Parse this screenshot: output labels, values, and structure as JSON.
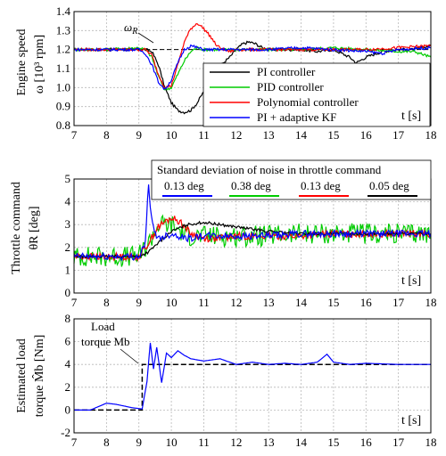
{
  "chart_data": [
    {
      "type": "line",
      "ylabel_line1": "Engine speed",
      "ylabel_line2": "ω [10³ rpm]",
      "xlabel": "t [s]",
      "xlim": [
        7,
        18
      ],
      "ylim": [
        0.8,
        1.4
      ],
      "xticks": [
        "7",
        "8",
        "9",
        "10",
        "11",
        "12",
        "13",
        "14",
        "15",
        "16",
        "17",
        "18"
      ],
      "yticks": [
        "0.8",
        "0.9",
        "1.0",
        "1.1",
        "1.2",
        "1.3",
        "1.4"
      ],
      "grid": true,
      "legend_position": "center-right",
      "annotations": [
        {
          "text": "ωR",
          "x": 9.3,
          "y": 1.33
        }
      ],
      "series": [
        {
          "name": "PI controller",
          "color": "#000000",
          "x": [
            7,
            8,
            9,
            9.2,
            9.4,
            9.6,
            9.8,
            10.0,
            10.2,
            10.4,
            10.6,
            10.8,
            11.0,
            11.2,
            11.4,
            11.6,
            11.8,
            12.0,
            12.2,
            12.4,
            12.6,
            12.8,
            13.0,
            13.5,
            14,
            14.5,
            15,
            15.5,
            15.7,
            16,
            16.5,
            17,
            17.5,
            18
          ],
          "y": [
            1.2,
            1.2,
            1.2,
            1.2,
            1.19,
            1.12,
            1.0,
            0.92,
            0.88,
            0.87,
            0.88,
            0.92,
            0.98,
            1.04,
            1.09,
            1.13,
            1.16,
            1.2,
            1.23,
            1.24,
            1.23,
            1.21,
            1.2,
            1.2,
            1.2,
            1.19,
            1.2,
            1.16,
            1.13,
            1.16,
            1.19,
            1.2,
            1.2,
            1.22
          ]
        },
        {
          "name": "PID controller",
          "color": "#00cc00",
          "x": [
            7,
            8,
            9,
            9.2,
            9.4,
            9.6,
            9.8,
            10.0,
            10.2,
            10.4,
            10.6,
            10.8,
            11.0,
            11.2,
            11.6,
            12,
            13,
            14,
            15,
            16,
            17,
            17.5,
            18
          ],
          "y": [
            1.2,
            1.2,
            1.21,
            1.2,
            1.16,
            1.06,
            0.99,
            1.0,
            1.07,
            1.14,
            1.19,
            1.21,
            1.2,
            1.2,
            1.2,
            1.2,
            1.2,
            1.2,
            1.21,
            1.2,
            1.19,
            1.19,
            1.16
          ]
        },
        {
          "name": "Polynomial controller",
          "color": "#ff0000",
          "x": [
            7,
            8,
            9,
            9.2,
            9.4,
            9.6,
            9.8,
            10.0,
            10.2,
            10.4,
            10.6,
            10.8,
            11.0,
            11.2,
            11.4,
            11.6,
            11.8,
            12.0,
            12.5,
            13,
            14,
            15,
            16,
            17,
            18
          ],
          "y": [
            1.2,
            1.2,
            1.2,
            1.2,
            1.17,
            1.07,
            1.0,
            1.01,
            1.12,
            1.24,
            1.31,
            1.34,
            1.31,
            1.27,
            1.22,
            1.2,
            1.19,
            1.2,
            1.2,
            1.2,
            1.2,
            1.2,
            1.2,
            1.21,
            1.22
          ]
        },
        {
          "name": "PI + adaptive KF",
          "color": "#0000ff",
          "x": [
            7,
            8,
            9,
            9.2,
            9.4,
            9.6,
            9.8,
            10.0,
            10.2,
            10.4,
            10.6,
            10.8,
            11.0,
            11.5,
            12,
            13,
            14,
            15,
            16,
            16.5,
            17,
            18
          ],
          "y": [
            1.2,
            1.2,
            1.2,
            1.18,
            1.12,
            1.03,
            0.99,
            1.04,
            1.13,
            1.2,
            1.22,
            1.21,
            1.2,
            1.2,
            1.2,
            1.2,
            1.21,
            1.2,
            1.19,
            1.18,
            1.2,
            1.21
          ]
        }
      ]
    },
    {
      "type": "line",
      "ylabel_line1": "Throttle command",
      "ylabel_line2": "θR [deg]",
      "xlabel": "t [s]",
      "xlim": [
        7,
        18
      ],
      "ylim": [
        0,
        5
      ],
      "xticks": [
        "7",
        "8",
        "9",
        "10",
        "11",
        "12",
        "13",
        "14",
        "15",
        "16",
        "17",
        "18"
      ],
      "yticks": [
        "0",
        "1",
        "2",
        "3",
        "4",
        "5"
      ],
      "grid": true,
      "legend_title": "Standard deviation of noise in throttle command",
      "legend_position": "top",
      "legend_entries": [
        {
          "label": "0.13 deg",
          "color": "#0000ff"
        },
        {
          "label": "0.38 deg",
          "color": "#00cc00"
        },
        {
          "label": "0.13 deg",
          "color": "#ff0000"
        },
        {
          "label": "0.05 deg",
          "color": "#000000"
        }
      ],
      "series": [
        {
          "color": "#00cc00",
          "noise": 0.38,
          "x": [
            7,
            8,
            9,
            9.3,
            9.6,
            10,
            10.5,
            11,
            12,
            13,
            14,
            15,
            16,
            17,
            18
          ],
          "y": [
            1.6,
            1.6,
            1.6,
            2.2,
            3.0,
            3.0,
            2.5,
            2.5,
            2.5,
            2.5,
            2.6,
            2.6,
            2.6,
            2.6,
            2.6
          ]
        },
        {
          "color": "#ff0000",
          "noise": 0.13,
          "x": [
            7,
            8,
            9,
            9.3,
            9.6,
            10,
            10.3,
            10.6,
            11,
            11.5,
            12,
            13,
            14,
            15,
            16,
            17,
            18
          ],
          "y": [
            1.6,
            1.6,
            1.6,
            2.2,
            2.9,
            3.3,
            3.1,
            2.6,
            2.4,
            2.4,
            2.5,
            2.5,
            2.5,
            2.6,
            2.6,
            2.6,
            2.6
          ]
        },
        {
          "color": "#000000",
          "noise": 0.05,
          "x": [
            7,
            8,
            9,
            9.3,
            9.6,
            10,
            10.5,
            11,
            11.5,
            12,
            12.5,
            13,
            14,
            15,
            16,
            17,
            18
          ],
          "y": [
            1.6,
            1.6,
            1.6,
            1.8,
            2.2,
            2.7,
            3.0,
            3.1,
            3.0,
            2.9,
            2.8,
            2.7,
            2.6,
            2.6,
            2.6,
            2.6,
            2.6
          ]
        },
        {
          "color": "#0000ff",
          "noise": 0.13,
          "x": [
            7,
            8,
            9,
            9.2,
            9.3,
            9.35,
            9.45,
            9.6,
            10,
            10.5,
            11,
            11.5,
            12,
            13,
            14,
            15,
            16,
            17,
            18
          ],
          "y": [
            1.6,
            1.6,
            1.6,
            2.2,
            4.9,
            3.6,
            2.8,
            2.4,
            2.6,
            2.4,
            2.5,
            2.5,
            2.5,
            2.5,
            2.6,
            2.6,
            2.6,
            2.6,
            2.6
          ]
        }
      ]
    },
    {
      "type": "line",
      "ylabel_line1": "Estimated load",
      "ylabel_line2": "torque M̂b [Nm]",
      "xlabel": "t [s]",
      "xlim": [
        7,
        18
      ],
      "ylim": [
        -2,
        8
      ],
      "xticks": [
        "7",
        "8",
        "9",
        "10",
        "11",
        "12",
        "13",
        "14",
        "15",
        "16",
        "17",
        "18"
      ],
      "yticks": [
        "-2",
        "0",
        "2",
        "4",
        "6",
        "8"
      ],
      "grid": true,
      "annotation_line1": "Load",
      "annotation_line2": "torque Mb",
      "series": [
        {
          "name": "Load torque Mb",
          "color": "#000000",
          "style": "dashed",
          "x": [
            7,
            9.1,
            9.1,
            9.9,
            18
          ],
          "y": [
            0,
            0,
            4,
            4,
            4
          ]
        },
        {
          "name": "estimate",
          "color": "#0000ff",
          "x": [
            7,
            7.5,
            8,
            8.3,
            8.8,
            9.1,
            9.25,
            9.35,
            9.45,
            9.55,
            9.7,
            9.85,
            10.0,
            10.2,
            10.4,
            10.6,
            11,
            11.5,
            12,
            12.5,
            13,
            13.5,
            14,
            14.5,
            14.8,
            15,
            15.5,
            16,
            17,
            18
          ],
          "y": [
            0,
            0,
            0.6,
            0.5,
            0.2,
            0.1,
            2.5,
            5.9,
            3.6,
            5.5,
            2.4,
            5.0,
            4.6,
            5.2,
            4.8,
            4.5,
            4.3,
            4.5,
            4.0,
            4.2,
            4.0,
            4.1,
            4.0,
            4.2,
            4.9,
            4.2,
            4.0,
            4.1,
            4.0,
            4.0
          ]
        }
      ]
    }
  ],
  "xaxis_label": "t [s]"
}
